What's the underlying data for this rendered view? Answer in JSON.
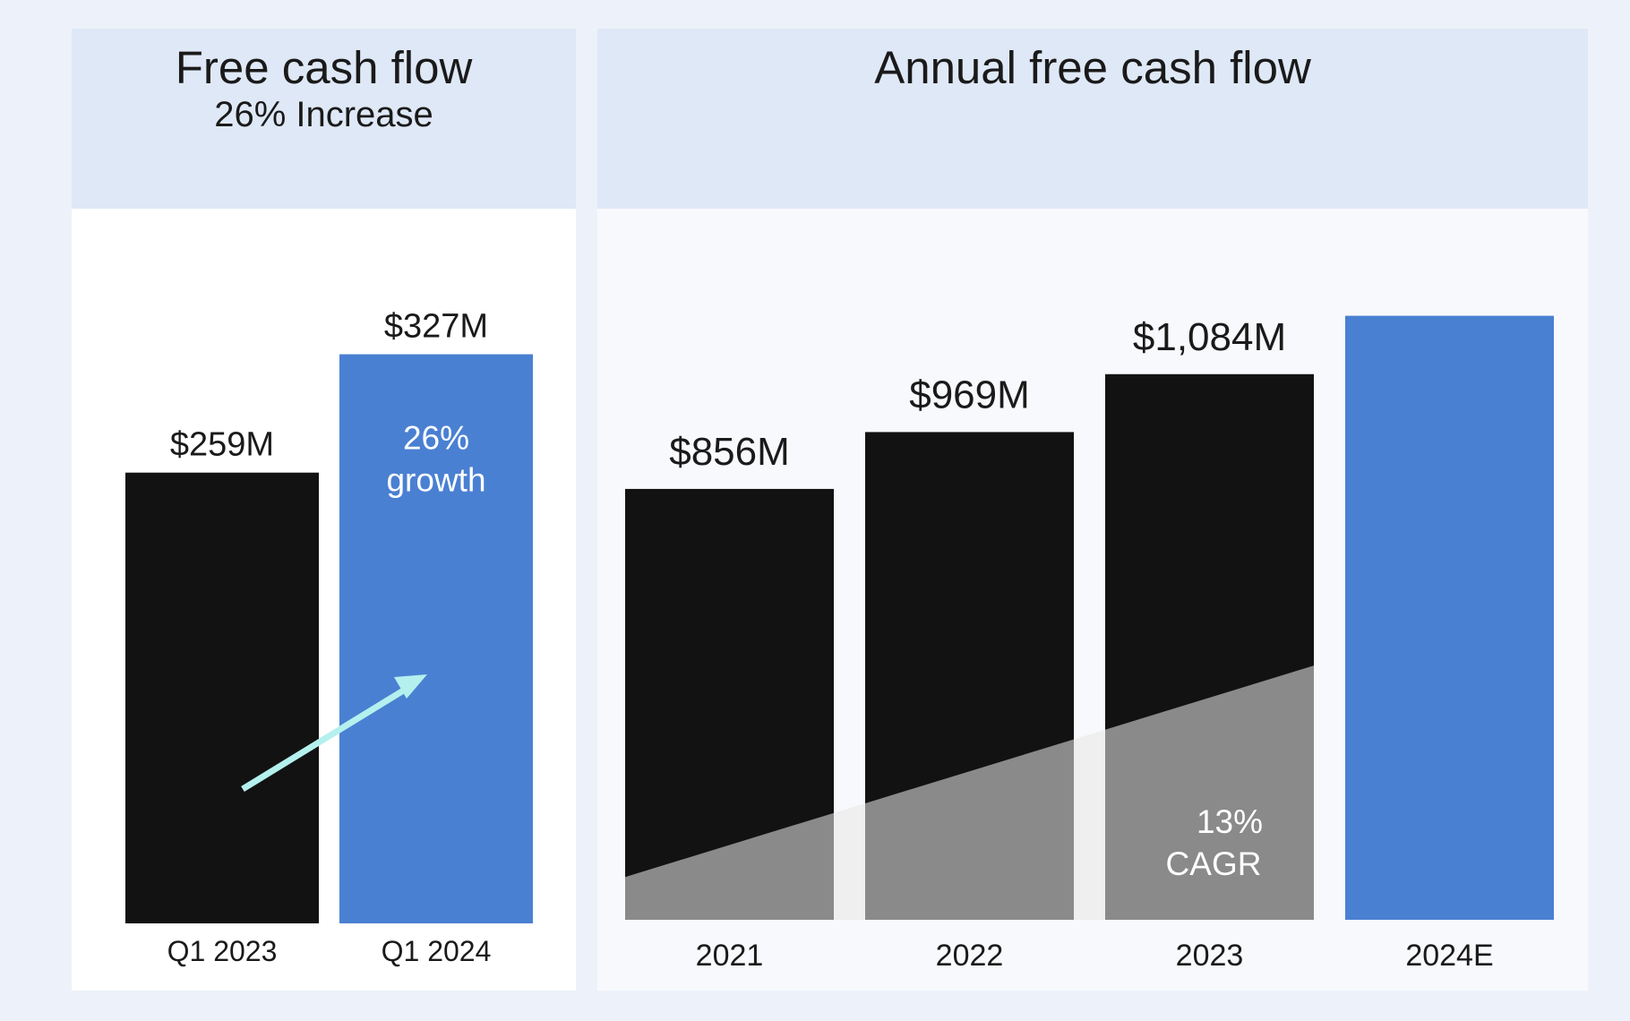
{
  "colors": {
    "bar_actual": "#121212",
    "bar_highlight": "#4a80d2",
    "cagr_band": "#8a8a8a",
    "cagr_band_light": "#efefef",
    "arrow": "#b4f0ee",
    "text_dark": "#1a1a1a",
    "text_light": "#ffffff"
  },
  "chart_data": [
    {
      "type": "bar",
      "title": "Free cash flow",
      "subtitle": "26% Increase",
      "categories": [
        "Q1 2023",
        "Q1 2024"
      ],
      "values": [
        259,
        327
      ],
      "value_labels": [
        "$259M",
        "$327M"
      ],
      "unit": "$M",
      "ylim": [
        0,
        370
      ],
      "highlight_index": 1,
      "annotation": {
        "line1": "26%",
        "line2": "growth",
        "arrow": "arrow-up-right-icon"
      },
      "grid": false,
      "legend": "none"
    },
    {
      "type": "bar",
      "title": "Annual free cash flow",
      "categories": [
        "2021",
        "2022",
        "2023",
        "2024E"
      ],
      "values": [
        856,
        969,
        1084,
        1200
      ],
      "value_labels": [
        "$856M",
        "$969M",
        "$1,084M",
        ""
      ],
      "unit": "$M",
      "ylim": [
        0,
        1290
      ],
      "highlight_index": 3,
      "annotation": {
        "line1": "13%",
        "line2": "CAGR"
      },
      "cagr_band": {
        "start_value": 85,
        "end_value": 505
      },
      "grid": false,
      "legend": "none"
    }
  ]
}
